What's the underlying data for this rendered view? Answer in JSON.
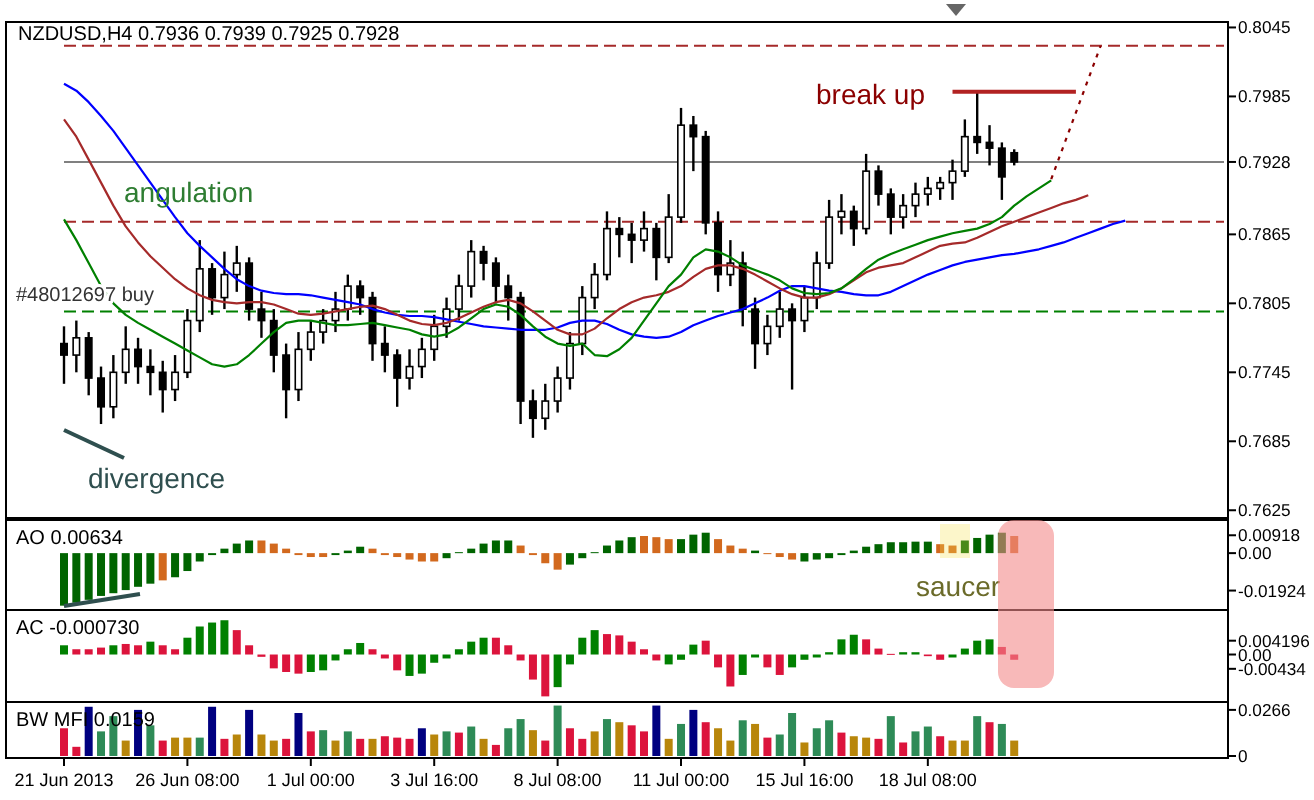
{
  "chart_data": [
    {
      "type": "candlestick",
      "title": "NZDUSD,H4  0.7936 0.7939 0.7925 0.7928",
      "categories": [
        null,
        null,
        null,
        null,
        null,
        null,
        null,
        null,
        null,
        null,
        null,
        null,
        null,
        null,
        null,
        null,
        null,
        null,
        null,
        null,
        null,
        null,
        null,
        null,
        null,
        null,
        null,
        null,
        null,
        null,
        null,
        null,
        null,
        null,
        null,
        null,
        null,
        null,
        null,
        null,
        null,
        null,
        null,
        null,
        null,
        null,
        null,
        null,
        null,
        null,
        null,
        null,
        null,
        null,
        null,
        null,
        null,
        null,
        null,
        null,
        null,
        null,
        null,
        null,
        null,
        null,
        null,
        null,
        null,
        null,
        null,
        null,
        null,
        null,
        null,
        null,
        null,
        null,
        null,
        null,
        null,
        null,
        null,
        null,
        null,
        null,
        null,
        null,
        null,
        null,
        null,
        null,
        null,
        null,
        null
      ],
      "ohlc": [
        [
          0.777,
          0.7785,
          0.7735,
          0.776
        ],
        [
          0.776,
          0.779,
          0.7745,
          0.7775
        ],
        [
          0.7775,
          0.778,
          0.7725,
          0.774
        ],
        [
          0.774,
          0.775,
          0.77,
          0.7715
        ],
        [
          0.7715,
          0.776,
          0.7705,
          0.7745
        ],
        [
          0.7745,
          0.7785,
          0.7735,
          0.7765
        ],
        [
          0.7765,
          0.7775,
          0.7735,
          0.775
        ],
        [
          0.775,
          0.7765,
          0.7725,
          0.7745
        ],
        [
          0.7745,
          0.7755,
          0.771,
          0.773
        ],
        [
          0.773,
          0.776,
          0.772,
          0.7745
        ],
        [
          0.7745,
          0.78,
          0.774,
          0.779
        ],
        [
          0.779,
          0.786,
          0.778,
          0.7835
        ],
        [
          0.7835,
          0.784,
          0.7795,
          0.781
        ],
        [
          0.781,
          0.785,
          0.78,
          0.783
        ],
        [
          0.783,
          0.7855,
          0.7815,
          0.784
        ],
        [
          0.784,
          0.7845,
          0.779,
          0.78
        ],
        [
          0.78,
          0.7815,
          0.7775,
          0.779
        ],
        [
          0.779,
          0.78,
          0.7745,
          0.776
        ],
        [
          0.776,
          0.777,
          0.7705,
          0.773
        ],
        [
          0.773,
          0.778,
          0.772,
          0.7765
        ],
        [
          0.7765,
          0.779,
          0.7755,
          0.778
        ],
        [
          0.778,
          0.78,
          0.777,
          0.779
        ],
        [
          0.779,
          0.7815,
          0.778,
          0.78
        ],
        [
          0.78,
          0.783,
          0.779,
          0.782
        ],
        [
          0.782,
          0.7825,
          0.7795,
          0.781
        ],
        [
          0.781,
          0.7815,
          0.7755,
          0.777
        ],
        [
          0.777,
          0.7785,
          0.7745,
          0.776
        ],
        [
          0.776,
          0.7765,
          0.7715,
          0.774
        ],
        [
          0.774,
          0.7765,
          0.773,
          0.775
        ],
        [
          0.775,
          0.7775,
          0.774,
          0.7765
        ],
        [
          0.7765,
          0.7795,
          0.7755,
          0.7785
        ],
        [
          0.7785,
          0.781,
          0.7775,
          0.78
        ],
        [
          0.78,
          0.783,
          0.779,
          0.782
        ],
        [
          0.782,
          0.786,
          0.781,
          0.785
        ],
        [
          0.785,
          0.7855,
          0.7825,
          0.784
        ],
        [
          0.784,
          0.7845,
          0.7805,
          0.782
        ],
        [
          0.782,
          0.783,
          0.779,
          0.781
        ],
        [
          0.781,
          0.7815,
          0.77,
          0.772
        ],
        [
          0.772,
          0.773,
          0.7688,
          0.7705
        ],
        [
          0.7705,
          0.7735,
          0.7695,
          0.772
        ],
        [
          0.772,
          0.775,
          0.771,
          0.774
        ],
        [
          0.774,
          0.778,
          0.773,
          0.777
        ],
        [
          0.777,
          0.782,
          0.776,
          0.781
        ],
        [
          0.781,
          0.784,
          0.78,
          0.783
        ],
        [
          0.783,
          0.7885,
          0.7825,
          0.787
        ],
        [
          0.787,
          0.788,
          0.7845,
          0.7865
        ],
        [
          0.7865,
          0.7875,
          0.784,
          0.786
        ],
        [
          0.786,
          0.7885,
          0.785,
          0.787
        ],
        [
          0.787,
          0.7875,
          0.7825,
          0.7845
        ],
        [
          0.7845,
          0.79,
          0.784,
          0.788
        ],
        [
          0.788,
          0.7975,
          0.7875,
          0.796
        ],
        [
          0.796,
          0.7968,
          0.792,
          0.795
        ],
        [
          0.795,
          0.7955,
          0.7865,
          0.7875
        ],
        [
          0.7875,
          0.7885,
          0.7815,
          0.783
        ],
        [
          0.783,
          0.786,
          0.782,
          0.784
        ],
        [
          0.784,
          0.785,
          0.7785,
          0.78
        ],
        [
          0.78,
          0.781,
          0.7748,
          0.777
        ],
        [
          0.777,
          0.7795,
          0.776,
          0.7785
        ],
        [
          0.7785,
          0.7815,
          0.7775,
          0.78
        ],
        [
          0.78,
          0.7805,
          0.773,
          0.779
        ],
        [
          0.779,
          0.782,
          0.778,
          0.781
        ],
        [
          0.781,
          0.785,
          0.78,
          0.784
        ],
        [
          0.784,
          0.7895,
          0.7835,
          0.788
        ],
        [
          0.788,
          0.79,
          0.7865,
          0.7885
        ],
        [
          0.7885,
          0.789,
          0.7855,
          0.787
        ],
        [
          0.787,
          0.7935,
          0.7865,
          0.792
        ],
        [
          0.792,
          0.7925,
          0.789,
          0.79
        ],
        [
          0.79,
          0.7905,
          0.7865,
          0.788
        ],
        [
          0.788,
          0.79,
          0.787,
          0.789
        ],
        [
          0.789,
          0.791,
          0.788,
          0.79
        ],
        [
          0.79,
          0.7915,
          0.789,
          0.7905
        ],
        [
          0.7905,
          0.7915,
          0.7895,
          0.791
        ],
        [
          0.791,
          0.793,
          0.7895,
          0.792
        ],
        [
          0.792,
          0.7965,
          0.7915,
          0.795
        ],
        [
          0.795,
          0.7988,
          0.7935,
          0.7945
        ],
        [
          0.7945,
          0.796,
          0.7925,
          0.794
        ],
        [
          0.794,
          0.7945,
          0.7895,
          0.7915
        ],
        [
          0.7936,
          0.7939,
          0.7925,
          0.7928
        ],
        null,
        null,
        null,
        null,
        null,
        null,
        null,
        null,
        null,
        null,
        null,
        null,
        null,
        null,
        null,
        null,
        null
      ],
      "series": [
        {
          "type": "line",
          "color": "#0000ff",
          "line_style": "solid",
          "values": [
            0.7996,
            0.799,
            0.798,
            0.7968,
            0.7955,
            0.794,
            0.7925,
            0.791,
            0.7895,
            0.788,
            0.7866,
            0.7855,
            0.7845,
            0.7835,
            0.7826,
            0.782,
            0.7816,
            0.7814,
            0.7813,
            0.7813,
            0.7812,
            0.781,
            0.7808,
            0.7806,
            0.7804,
            0.78,
            0.7797,
            0.7795,
            0.7794,
            0.7794,
            0.7793,
            0.7791,
            0.7789,
            0.7787,
            0.7785,
            0.7784,
            0.7783,
            0.7782,
            0.7782,
            0.7782,
            0.7784,
            0.7788,
            0.779,
            0.779,
            0.7787,
            0.7782,
            0.7778,
            0.7776,
            0.7775,
            0.7776,
            0.778,
            0.7786,
            0.779,
            0.7794,
            0.7797,
            0.78,
            0.7805,
            0.781,
            0.7816,
            0.782,
            0.782,
            0.7818,
            0.7816,
            0.7815,
            0.7813,
            0.7812,
            0.7812,
            0.7815,
            0.782,
            0.7825,
            0.783,
            0.7834,
            0.7838,
            0.7841,
            0.7843,
            0.7845,
            0.7847,
            0.7848,
            0.785,
            0.7852,
            0.7855,
            0.7858,
            0.7862,
            0.7866,
            0.787,
            0.7874,
            0.7877,
            null,
            null,
            null,
            null,
            null,
            null,
            null,
            null
          ]
        },
        {
          "type": "line",
          "color": "#a52a2a",
          "line_style": "solid",
          "values": [
            0.7965,
            0.795,
            0.793,
            0.791,
            0.789,
            0.7872,
            0.7858,
            0.7846,
            0.7836,
            0.7826,
            0.7818,
            0.7812,
            0.7808,
            0.7806,
            0.7805,
            0.7806,
            0.7806,
            0.7804,
            0.78,
            0.7796,
            0.7795,
            0.7796,
            0.7798,
            0.78,
            0.7802,
            0.7803,
            0.78,
            0.7795,
            0.779,
            0.7787,
            0.7786,
            0.7788,
            0.7792,
            0.7797,
            0.7802,
            0.7806,
            0.7808,
            0.7805,
            0.7798,
            0.779,
            0.7782,
            0.7778,
            0.7778,
            0.7783,
            0.7792,
            0.78,
            0.7806,
            0.781,
            0.7812,
            0.7815,
            0.782,
            0.7828,
            0.7835,
            0.7838,
            0.7838,
            0.7835,
            0.783,
            0.7824,
            0.7818,
            0.7813,
            0.781,
            0.781,
            0.7813,
            0.7818,
            0.7825,
            0.7832,
            0.7836,
            0.7838,
            0.784,
            0.7845,
            0.785,
            0.7855,
            0.7857,
            0.7858,
            0.7862,
            0.7867,
            0.7872,
            0.7876,
            0.788,
            0.7884,
            0.7888,
            0.7892,
            0.7895,
            0.7899,
            null,
            null,
            null,
            null,
            null,
            null,
            null,
            null,
            null,
            null,
            null
          ]
        },
        {
          "type": "line",
          "color": "#008000",
          "line_style": "solid",
          "values": [
            0.7878,
            0.786,
            0.784,
            0.782,
            0.7805,
            0.7795,
            0.7788,
            0.7782,
            0.7776,
            0.777,
            0.7764,
            0.7758,
            0.7752,
            0.775,
            0.7752,
            0.776,
            0.777,
            0.778,
            0.7788,
            0.779,
            0.779,
            0.7788,
            0.7786,
            0.7786,
            0.7787,
            0.7788,
            0.7786,
            0.7784,
            0.7782,
            0.7778,
            0.7776,
            0.7778,
            0.7784,
            0.7792,
            0.78,
            0.7804,
            0.7802,
            0.7795,
            0.7785,
            0.7776,
            0.777,
            0.7768,
            0.777,
            0.776,
            0.7759,
            0.7765,
            0.7775,
            0.779,
            0.7805,
            0.782,
            0.783,
            0.7845,
            0.7852,
            0.785,
            0.7845,
            0.7838,
            0.7834,
            0.783,
            0.7825,
            0.7818,
            0.7814,
            0.7813,
            0.7814,
            0.7818,
            0.7826,
            0.7835,
            0.7843,
            0.7848,
            0.7852,
            0.7856,
            0.786,
            0.7863,
            0.7866,
            0.7868,
            0.787,
            0.7874,
            0.788,
            0.789,
            0.7898,
            0.7905,
            0.7912,
            null,
            null,
            null,
            null,
            null,
            null,
            null,
            null,
            null,
            null,
            null,
            null,
            null,
            null
          ]
        },
        {
          "type": "line",
          "color": "#8b0000",
          "line_style": "dotted",
          "values": [
            null,
            null,
            null,
            null,
            null,
            null,
            null,
            null,
            null,
            null,
            null,
            null,
            null,
            null,
            null,
            null,
            null,
            null,
            null,
            null,
            null,
            null,
            null,
            null,
            null,
            null,
            null,
            null,
            null,
            null,
            null,
            null,
            null,
            null,
            null,
            null,
            null,
            null,
            null,
            null,
            null,
            null,
            null,
            null,
            null,
            null,
            null,
            null,
            null,
            null,
            null,
            null,
            null,
            null,
            null,
            null,
            null,
            null,
            null,
            null,
            null,
            null,
            null,
            null,
            null,
            null,
            null,
            null,
            null,
            null,
            null,
            null,
            null,
            null,
            null,
            null,
            null,
            null,
            null,
            null,
            0.7913,
            0.7942,
            0.7971,
            0.8,
            0.8029,
            null,
            null,
            null,
            null,
            null,
            null,
            null,
            null,
            null,
            null
          ]
        },
        {
          "type": "line",
          "color": "#b22222",
          "line_style": "solid",
          "values": [
            null,
            null,
            null,
            null,
            null,
            null,
            null,
            null,
            null,
            null,
            null,
            null,
            null,
            null,
            null,
            null,
            null,
            null,
            null,
            null,
            null,
            null,
            null,
            null,
            null,
            null,
            null,
            null,
            null,
            null,
            null,
            null,
            null,
            null,
            null,
            null,
            null,
            null,
            null,
            null,
            null,
            null,
            null,
            null,
            null,
            null,
            null,
            null,
            null,
            null,
            null,
            null,
            null,
            null,
            null,
            null,
            null,
            null,
            null,
            null,
            null,
            null,
            null,
            null,
            null,
            null,
            null,
            null,
            null,
            null,
            null,
            null,
            0.7989,
            0.7989,
            0.7989,
            0.7989,
            0.7989,
            0.7989,
            0.7989,
            0.7989,
            0.7989,
            0.7989,
            0.7989,
            null,
            null,
            null,
            null,
            null,
            null,
            null,
            null,
            null,
            null,
            null,
            null
          ]
        }
      ],
      "ylim": [
        0.762,
        0.8048
      ],
      "yticks": [
        0.8045,
        0.7985,
        0.7928,
        0.7865,
        0.7805,
        0.7745,
        0.7685,
        0.7625
      ],
      "ref_lines": [
        {
          "axis": "y",
          "value": 0.8029,
          "color": "#a52a2a",
          "line_style": "dashed"
        },
        {
          "axis": "y",
          "value": 0.7876,
          "color": "#a52a2a",
          "line_style": "dashed"
        },
        {
          "axis": "y",
          "value": 0.7798,
          "color": "#008000",
          "line_style": "dashed",
          "label": "#48012697 buy"
        },
        {
          "axis": "y",
          "value": 0.7928,
          "color": "#808080",
          "line_style": "solid"
        }
      ],
      "annotations": [
        "angulation",
        "divergence",
        "break up"
      ],
      "tick_labels": "y"
    },
    {
      "type": "bar",
      "title": "AO 0.00634",
      "categories": [
        null,
        null,
        null,
        null,
        null,
        null,
        null,
        null,
        null,
        null,
        null,
        null,
        null,
        null,
        null,
        null,
        null,
        null,
        null,
        null,
        null,
        null,
        null,
        null,
        null,
        null,
        null,
        null,
        null,
        null,
        null,
        null,
        null,
        null,
        null,
        null,
        null,
        null,
        null,
        null,
        null,
        null,
        null,
        null,
        null,
        null,
        null,
        null,
        null,
        null,
        null,
        null,
        null,
        null,
        null,
        null,
        null,
        null,
        null,
        null,
        null,
        null,
        null,
        null,
        null,
        null,
        null,
        null,
        null,
        null,
        null,
        null,
        null,
        null,
        null,
        null,
        null,
        null,
        null,
        null,
        null,
        null,
        null,
        null,
        null,
        null,
        null,
        null,
        null,
        null,
        null,
        null,
        null,
        null,
        null
      ],
      "values": [
        -0.027,
        -0.0255,
        -0.024,
        -0.022,
        -0.0206,
        -0.019,
        -0.0173,
        -0.0157,
        -0.014,
        -0.0124,
        -0.0092,
        -0.0043,
        -0.001,
        0.0023,
        0.0049,
        0.0065,
        0.0065,
        0.0049,
        0.0023,
        -0.001,
        -0.002,
        -0.002,
        -0.001,
        0.0013,
        0.0033,
        0.0023,
        -0.001,
        -0.002,
        -0.0033,
        -0.0043,
        -0.0043,
        -0.0026,
        0.0005,
        0.0023,
        0.0049,
        0.0065,
        0.0065,
        0.0039,
        -0.001,
        -0.0052,
        -0.0085,
        -0.0059,
        -0.0026,
        0.0005,
        0.0039,
        0.0065,
        0.0082,
        0.0088,
        0.0082,
        0.0072,
        0.0072,
        0.0095,
        0.0105,
        0.0072,
        0.0039,
        0.0023,
        0.0013,
        -0.0005,
        -0.002,
        -0.0033,
        -0.0043,
        -0.0033,
        -0.0026,
        -0.001,
        0.0013,
        0.0033,
        0.0046,
        0.0056,
        0.0056,
        0.0059,
        0.0059,
        0.0046,
        0.0039,
        0.0065,
        0.0078,
        0.0095,
        0.0105,
        0.0088,
        null,
        null,
        null,
        null,
        null,
        null,
        null,
        null,
        null,
        null,
        null,
        null,
        null,
        null,
        null,
        null,
        null
      ],
      "colors": [
        "#006400",
        "#006400",
        "#006400",
        "#006400",
        "#006400",
        "#006400",
        "#006400",
        "#006400",
        "#d2691e",
        "#006400",
        "#006400",
        "#006400",
        "#006400",
        "#006400",
        "#006400",
        "#006400",
        "#d2691e",
        "#d2691e",
        "#d2691e",
        "#d2691e",
        "#d2691e",
        "#d2691e",
        "#006400",
        "#006400",
        "#006400",
        "#d2691e",
        "#d2691e",
        "#d2691e",
        "#d2691e",
        "#d2691e",
        "#d2691e",
        "#006400",
        "#006400",
        "#006400",
        "#006400",
        "#006400",
        "#006400",
        "#d2691e",
        "#d2691e",
        "#d2691e",
        "#d2691e",
        "#006400",
        "#006400",
        "#006400",
        "#006400",
        "#006400",
        "#006400",
        "#d2691e",
        "#d2691e",
        "#d2691e",
        "#006400",
        "#006400",
        "#006400",
        "#d2691e",
        "#d2691e",
        "#d2691e",
        "#006400",
        "#d2691e",
        "#d2691e",
        "#d2691e",
        "#006400",
        "#006400",
        "#006400",
        "#006400",
        "#006400",
        "#006400",
        "#006400",
        "#006400",
        "#006400",
        "#006400",
        "#006400",
        "#d2691e",
        "#d2691e",
        "#006400",
        "#006400",
        "#006400",
        "#006400",
        "#d2691e",
        null,
        null,
        null,
        null,
        null,
        null,
        null,
        null,
        null,
        null,
        null,
        null,
        null,
        null,
        null,
        null,
        null
      ],
      "ylim": [
        -0.0282,
        0.016
      ],
      "yticks": [
        0.00918,
        {
          "value": 0,
          "label": "0.00"
        },
        -0.01924
      ],
      "annotations": [
        "saucer"
      ],
      "tick_labels": "y"
    },
    {
      "type": "bar",
      "title": "AC -0.000730",
      "categories": [
        null,
        null,
        null,
        null,
        null,
        null,
        null,
        null,
        null,
        null,
        null,
        null,
        null,
        null,
        null,
        null,
        null,
        null,
        null,
        null,
        null,
        null,
        null,
        null,
        null,
        null,
        null,
        null,
        null,
        null,
        null,
        null,
        null,
        null,
        null,
        null,
        null,
        null,
        null,
        null,
        null,
        null,
        null,
        null,
        null,
        null,
        null,
        null,
        null,
        null,
        null,
        null,
        null,
        null,
        null,
        null,
        null,
        null,
        null,
        null,
        null,
        null,
        null,
        null,
        null,
        null,
        null,
        null,
        null,
        null,
        null,
        null,
        null,
        null,
        null,
        null,
        null,
        null,
        null,
        null,
        null,
        null,
        null,
        null,
        null,
        null,
        null,
        null,
        null,
        null,
        null,
        null,
        null,
        null,
        null
      ],
      "values": [
        0.0028,
        0.0016,
        0.0016,
        0.0021,
        0.0028,
        0.0032,
        0.0028,
        0.0039,
        0.0028,
        0.0016,
        0.0051,
        0.0085,
        0.0097,
        0.0104,
        0.0074,
        0.0028,
        -0.0007,
        -0.0042,
        -0.0053,
        -0.0058,
        -0.0053,
        -0.0048,
        -0.0018,
        0.0016,
        0.0035,
        0.0016,
        -0.0012,
        -0.0048,
        -0.0065,
        -0.0058,
        -0.0025,
        -0.0012,
        0.0016,
        0.0039,
        0.0051,
        0.0051,
        0.0028,
        -0.0018,
        -0.0076,
        -0.0127,
        -0.0099,
        -0.003,
        0.0051,
        0.0074,
        0.0062,
        0.0058,
        0.0039,
        0.0016,
        -0.0018,
        -0.003,
        -0.0016,
        0.003,
        0.0042,
        -0.0039,
        -0.0097,
        -0.0062,
        -0.0009,
        -0.0039,
        -0.0062,
        -0.0039,
        -0.0016,
        -0.0009,
        0.0007,
        0.0046,
        0.006,
        0.0046,
        0.0018,
        0.0002,
        0.0007,
        0.0007,
        -0.0005,
        -0.0016,
        -0.0009,
        0.0018,
        0.0042,
        0.0046,
        0.0023,
        -0.0016,
        null,
        null,
        null,
        null,
        null,
        null,
        null,
        null,
        null,
        null,
        null,
        null,
        null,
        null,
        null,
        null,
        null
      ],
      "colors": [
        "#008000",
        "#dc143c",
        "#dc143c",
        "#dc143c",
        "#008000",
        "#dc143c",
        "#dc143c",
        "#008000",
        "#dc143c",
        "#dc143c",
        "#008000",
        "#008000",
        "#008000",
        "#008000",
        "#dc143c",
        "#dc143c",
        "#dc143c",
        "#dc143c",
        "#dc143c",
        "#dc143c",
        "#008000",
        "#008000",
        "#008000",
        "#008000",
        "#008000",
        "#dc143c",
        "#dc143c",
        "#dc143c",
        "#008000",
        "#008000",
        "#008000",
        "#008000",
        "#008000",
        "#008000",
        "#008000",
        "#dc143c",
        "#dc143c",
        "#dc143c",
        "#dc143c",
        "#dc143c",
        "#008000",
        "#008000",
        "#008000",
        "#008000",
        "#dc143c",
        "#dc143c",
        "#dc143c",
        "#dc143c",
        "#dc143c",
        "#008000",
        "#008000",
        "#008000",
        "#dc143c",
        "#dc143c",
        "#dc143c",
        "#008000",
        "#008000",
        "#dc143c",
        "#dc143c",
        "#008000",
        "#008000",
        "#008000",
        "#008000",
        "#008000",
        "#008000",
        "#dc143c",
        "#dc143c",
        "#dc143c",
        "#008000",
        "#008000",
        "#dc143c",
        "#dc143c",
        "#008000",
        "#008000",
        "#008000",
        "#008000",
        "#dc143c",
        "#dc143c",
        null,
        null,
        null,
        null,
        null,
        null,
        null,
        null,
        null,
        null,
        null,
        null,
        null,
        null,
        null,
        null,
        null
      ],
      "ylim": [
        -0.0138,
        0.0129
      ],
      "yticks": [
        0.004196,
        {
          "value": 0,
          "label": "0.00"
        },
        -0.00434
      ],
      "tick_labels": "y"
    },
    {
      "type": "bar",
      "title": "BW MFI 0.0159",
      "categories": [
        "21 Jun 2013",
        null,
        null,
        null,
        null,
        null,
        null,
        null,
        null,
        null,
        "26 Jun 08:00",
        null,
        null,
        null,
        null,
        null,
        null,
        null,
        null,
        null,
        "1 Jul 00:00",
        null,
        null,
        null,
        null,
        null,
        null,
        null,
        null,
        null,
        "3 Jul 16:00",
        null,
        null,
        null,
        null,
        null,
        null,
        null,
        null,
        null,
        "8 Jul 08:00",
        null,
        null,
        null,
        null,
        null,
        null,
        null,
        null,
        null,
        "11 Jul 00:00",
        null,
        null,
        null,
        null,
        null,
        null,
        null,
        null,
        null,
        "15 Jul 16:00",
        null,
        null,
        null,
        null,
        null,
        null,
        null,
        null,
        null,
        "18 Jul 08:00",
        null,
        null,
        null,
        null,
        null,
        null,
        null,
        null,
        null,
        null,
        null,
        null,
        null,
        null,
        null,
        null,
        null,
        null,
        null,
        null,
        null,
        null,
        null,
        null
      ],
      "values": [
        0.016,
        0.0053,
        0.0284,
        0.0142,
        0.023,
        0.0089,
        0.0266,
        0.0177,
        0.0089,
        0.0106,
        0.0106,
        0.0106,
        0.0284,
        0.0099,
        0.0124,
        0.0266,
        0.0124,
        0.0089,
        0.0099,
        0.0248,
        0.0142,
        0.0149,
        0.0089,
        0.0142,
        0.0099,
        0.0099,
        0.0114,
        0.0106,
        0.0099,
        0.016,
        0.0124,
        0.0142,
        0.0135,
        0.017,
        0.0099,
        0.0064,
        0.016,
        0.0213,
        0.0149,
        0.0089,
        0.0291,
        0.016,
        0.0099,
        0.0142,
        0.0213,
        0.0195,
        0.0177,
        0.0142,
        0.0291,
        0.0099,
        0.0185,
        0.0266,
        0.0195,
        0.016,
        0.0089,
        0.0206,
        0.0185,
        0.0106,
        0.0124,
        0.0248,
        0.0078,
        0.016,
        0.0206,
        0.0135,
        0.0114,
        0.0106,
        0.0099,
        0.023,
        0.0078,
        0.0142,
        0.017,
        0.0114,
        0.0089,
        0.0089,
        0.023,
        0.0195,
        0.0185,
        0.0089,
        null,
        null,
        null,
        null,
        null,
        null,
        null,
        null,
        null,
        null,
        null,
        null,
        null,
        null,
        null,
        null,
        null
      ],
      "colors": [
        "#dc143c",
        "#dc143c",
        "#000080",
        "#2e8b57",
        "#2e8b57",
        "#b8860b",
        "#000080",
        "#2e8b57",
        "#dc143c",
        "#b8860b",
        "#b8860b",
        "#2e8b57",
        "#000080",
        "#dc143c",
        "#b8860b",
        "#000080",
        "#b8860b",
        "#b8860b",
        "#dc143c",
        "#000080",
        "#dc143c",
        "#2e8b57",
        "#b8860b",
        "#2e8b57",
        "#dc143c",
        "#b8860b",
        "#dc143c",
        "#dc143c",
        "#dc143c",
        "#000080",
        "#b8860b",
        "#2e8b57",
        "#dc143c",
        "#2e8b57",
        "#b8860b",
        "#dc143c",
        "#2e8b57",
        "#2e8b57",
        "#b8860b",
        "#dc143c",
        "#2e8b57",
        "#dc143c",
        "#dc143c",
        "#b8860b",
        "#2e8b57",
        "#b8860b",
        "#dc143c",
        "#dc143c",
        "#000080",
        "#b8860b",
        "#2e8b57",
        "#000080",
        "#dc143c",
        "#b8860b",
        "#b8860b",
        "#2e8b57",
        "#b8860b",
        "#dc143c",
        "#2e8b57",
        "#2e8b57",
        "#b8860b",
        "#2e8b57",
        "#2e8b57",
        "#dc143c",
        "#b8860b",
        "#b8860b",
        "#dc143c",
        "#2e8b57",
        "#dc143c",
        "#2e8b57",
        "#2e8b57",
        "#dc143c",
        "#b8860b",
        "#b8860b",
        "#2e8b57",
        "#dc143c",
        "#2e8b57",
        "#b8860b",
        null,
        null,
        null,
        null,
        null,
        null,
        null,
        null,
        null,
        null,
        null,
        null,
        null,
        null,
        null,
        null,
        null
      ],
      "ylim": [
        0,
        0.03
      ],
      "yticks": [
        0.0266,
        0
      ]
    }
  ]
}
